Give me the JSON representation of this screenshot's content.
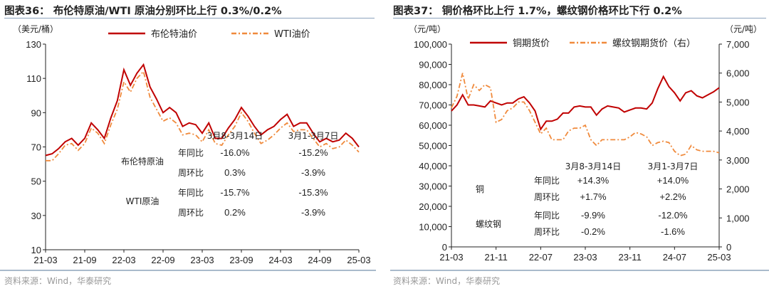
{
  "charts": [
    {
      "title": "图表36： 布伦特原油/WTI 原油分别环比上行 0.3%/0.2%",
      "source": "资料来源：Wind，华泰研究"
    },
    {
      "title": "图表37： 铜价格环比上行 1.7%，螺纹钢价格环比下行 0.2%",
      "source": "资料来源：Wind，华泰研究"
    }
  ],
  "chart_data": [
    {
      "type": "line",
      "ylabel": "（美元/桶）",
      "ylim": [
        10,
        130
      ],
      "yticks": [
        "130",
        "110",
        "90",
        "70",
        "50",
        "30",
        "10"
      ],
      "xticks": [
        "21-03",
        "21-09",
        "22-03",
        "22-09",
        "23-03",
        "23-09",
        "24-03",
        "24-09",
        "25-03"
      ],
      "x_start": "2021-03",
      "x_end": "2025-03",
      "legend": "top",
      "series": [
        {
          "name": "布伦特油价",
          "color": "#c00000",
          "style": "solid",
          "values": [
            65,
            66,
            69,
            73,
            75,
            71,
            75,
            84,
            80,
            75,
            87,
            97,
            115,
            106,
            113,
            118,
            105,
            98,
            90,
            93,
            90,
            82,
            84,
            83,
            78,
            84,
            75,
            75,
            81,
            86,
            93,
            88,
            82,
            77,
            80,
            82,
            86,
            89,
            82,
            84,
            84,
            78,
            73,
            75,
            73,
            74,
            78,
            75,
            70
          ]
        },
        {
          "name": "WTI油价",
          "color": "#f08a3c",
          "style": "dashdot",
          "values": [
            62,
            62,
            66,
            71,
            72,
            68,
            72,
            81,
            78,
            72,
            83,
            92,
            108,
            102,
            110,
            114,
            99,
            92,
            85,
            87,
            84,
            77,
            78,
            77,
            73,
            80,
            72,
            71,
            77,
            82,
            90,
            85,
            78,
            72,
            74,
            77,
            81,
            84,
            79,
            80,
            80,
            75,
            70,
            72,
            69,
            70,
            74,
            71,
            67
          ]
        }
      ],
      "annotation_table": {
        "columns": [
          "3月8-3月14日",
          "3月1-3月7日"
        ],
        "rows": [
          {
            "group": "布伦特原油",
            "metric": "年同比",
            "values": [
              "-16.0%",
              "-15.2%"
            ]
          },
          {
            "group": "",
            "metric": "周环比",
            "values": [
              "0.3%",
              "-3.9%"
            ]
          },
          {
            "group": "WTI原油",
            "metric": "年同比",
            "values": [
              "-15.7%",
              "-15.3%"
            ]
          },
          {
            "group": "",
            "metric": "周环比",
            "values": [
              "0.2%",
              "-3.9%"
            ]
          }
        ]
      }
    },
    {
      "type": "line",
      "ylabel": "（元/吨）",
      "ylabel_right": "（元/吨）",
      "ylim": [
        0,
        100000
      ],
      "ylim_right": [
        0,
        7000
      ],
      "yticks": [
        "100,000",
        "90,000",
        "80,000",
        "70,000",
        "60,000",
        "50,000",
        "40,000",
        "30,000",
        "20,000",
        "10,000",
        "0"
      ],
      "yticks_right": [
        "7,000",
        "6,000",
        "5,000",
        "4,000",
        "3,000",
        "2,000",
        "1,000",
        "0"
      ],
      "xticks": [
        "21-03",
        "21-11",
        "22-07",
        "23-03",
        "23-11",
        "24-07",
        "25-03"
      ],
      "x_start": "2021-03",
      "x_end": "2025-03",
      "legend": "top",
      "series": [
        {
          "name": "铜期货价",
          "axis": "left",
          "color": "#c00000",
          "style": "solid",
          "values": [
            67000,
            70000,
            75000,
            70000,
            70000,
            69500,
            69000,
            72000,
            71000,
            70000,
            71000,
            71000,
            73000,
            74000,
            71000,
            67000,
            58000,
            62000,
            62000,
            63000,
            66000,
            66000,
            69000,
            69500,
            69000,
            69000,
            65000,
            68000,
            69500,
            69000,
            68500,
            66500,
            67500,
            68500,
            68500,
            68000,
            71000,
            78000,
            84000,
            79000,
            76000,
            72000,
            76000,
            77000,
            74500,
            73500,
            75000,
            76500,
            78500
          ]
        },
        {
          "name": "螺纹钢期货价（右）",
          "axis": "right",
          "color": "#f08a3c",
          "style": "dashdot",
          "values": [
            4800,
            5200,
            6000,
            5100,
            5600,
            5400,
            5600,
            5500,
            4300,
            4400,
            4700,
            4800,
            5000,
            5000,
            4700,
            4300,
            3900,
            4100,
            3700,
            3700,
            3700,
            4000,
            4100,
            4100,
            4200,
            3700,
            3500,
            3700,
            3700,
            3700,
            3700,
            3700,
            3800,
            3950,
            3900,
            3800,
            3500,
            3600,
            3650,
            3600,
            3300,
            3150,
            3200,
            3500,
            3350,
            3300,
            3300,
            3300,
            3250
          ]
        }
      ],
      "annotation_table": {
        "columns": [
          "3月8-3月14日",
          "3月1-3月7日"
        ],
        "rows": [
          {
            "group": "铜",
            "metric": "年同比",
            "values": [
              "+14.3%",
              "+14.0%"
            ]
          },
          {
            "group": "",
            "metric": "周环比",
            "values": [
              "+1.7%",
              "+2.2%"
            ]
          },
          {
            "group": "螺纹钢",
            "metric": "年同比",
            "values": [
              "-9.9%",
              "-12.0%"
            ]
          },
          {
            "group": "",
            "metric": "周环比",
            "values": [
              "-0.2%",
              "-1.6%"
            ]
          }
        ]
      }
    }
  ]
}
